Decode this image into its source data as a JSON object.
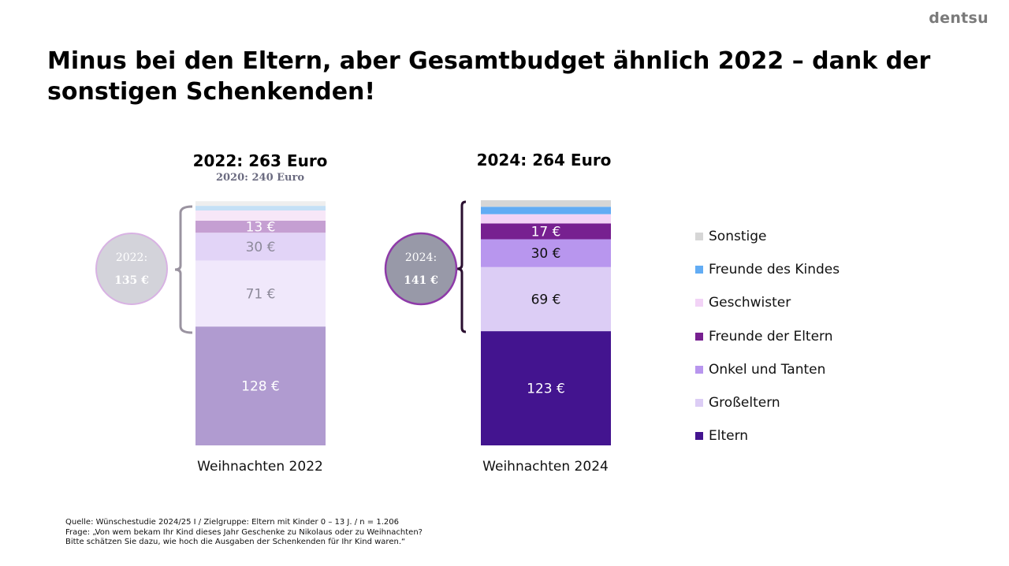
{
  "logo": "dentsu",
  "title": "Minus bei den Eltern, aber Gesamtbudget ähnlich 2022 – dank der sonstigen Schenkenden!",
  "headers": [
    {
      "main": "2022: 263 Euro",
      "sub": "2020: 240 Euro"
    },
    {
      "main": "2024: 264 Euro",
      "sub": ""
    }
  ],
  "circles": [
    {
      "year": "2022:",
      "value": "135 €"
    },
    {
      "year": "2024:",
      "value": "141 €"
    }
  ],
  "colors": {
    "2022": {
      "Eltern": "#b09bd0",
      "Großeltern": "#f0e8fb",
      "Onkel und Tanten": "#e2d4f7",
      "Freunde der Eltern": "#c59fd2",
      "Geschwister": "#f7e7f8",
      "Freunde des Kindes": "#c5e0f6",
      "Sonstige": "#eeeeee"
    },
    "2024": {
      "Eltern": "#43148f",
      "Großeltern": "#dccdf5",
      "Onkel und Tanten": "#b896ee",
      "Freunde der Eltern": "#772090",
      "Geschwister": "#f2d3f6",
      "Freunde des Kindes": "#62acf4",
      "Sonstige": "#d6d6d6"
    },
    "circle_2022_fill": "#d3d3da",
    "circle_2022_stroke": "#d8b2e3",
    "circle_2024_fill": "#9899a8",
    "circle_2024_stroke": "#8e3aa8",
    "bracket_2022": "#9a93a0",
    "bracket_2024": "#2a0f30"
  },
  "chart_data": {
    "type": "bar",
    "stacked": true,
    "title": "Minus bei den Eltern, aber Gesamtbudget ähnlich 2022 – dank der sonstigen Schenkenden!",
    "categories": [
      "Weihnachten 2022",
      "Weihnachten 2024"
    ],
    "totals": [
      263,
      264
    ],
    "series": [
      {
        "name": "Eltern",
        "values": [
          128,
          123
        ],
        "labels": [
          "128 €",
          "123 €"
        ]
      },
      {
        "name": "Großeltern",
        "values": [
          71,
          69
        ],
        "labels": [
          "71 €",
          "69 €"
        ]
      },
      {
        "name": "Onkel und Tanten",
        "values": [
          30,
          30
        ],
        "labels": [
          "30 €",
          "30 €"
        ]
      },
      {
        "name": "Freunde der Eltern",
        "values": [
          13,
          17
        ],
        "labels": [
          "13 €",
          "17 €"
        ]
      },
      {
        "name": "Geschwister",
        "values": [
          11,
          10
        ],
        "labels": [
          "",
          ""
        ]
      },
      {
        "name": "Freunde des Kindes",
        "values": [
          5,
          8
        ],
        "labels": [
          "",
          ""
        ]
      },
      {
        "name": "Sonstige",
        "values": [
          5,
          7
        ],
        "labels": [
          "",
          ""
        ]
      }
    ],
    "legend_order": [
      "Sonstige",
      "Freunde des Kindes",
      "Geschwister",
      "Freunde der Eltern",
      "Onkel und Tanten",
      "Großeltern",
      "Eltern"
    ],
    "legend_colors": [
      "#d6d6d6",
      "#62acf4",
      "#f2d3f6",
      "#772090",
      "#b896ee",
      "#dccdf5",
      "#43148f"
    ],
    "legend_position": "right",
    "xlabel": "",
    "ylabel": "",
    "ylim": [
      0,
      264
    ],
    "grid": false
  },
  "footnote": [
    "Quelle: Wünschestudie 2024/25 I / Zielgruppe: Eltern mit Kinder 0 – 13 J. / n = 1.206",
    "Frage: „Von wem bekam Ihr Kind dieses Jahr Geschenke zu Nikolaus oder zu Weihnachten?",
    "Bitte schätzen Sie dazu, wie hoch die Ausgaben der Schenkenden für Ihr Kind waren.“"
  ]
}
